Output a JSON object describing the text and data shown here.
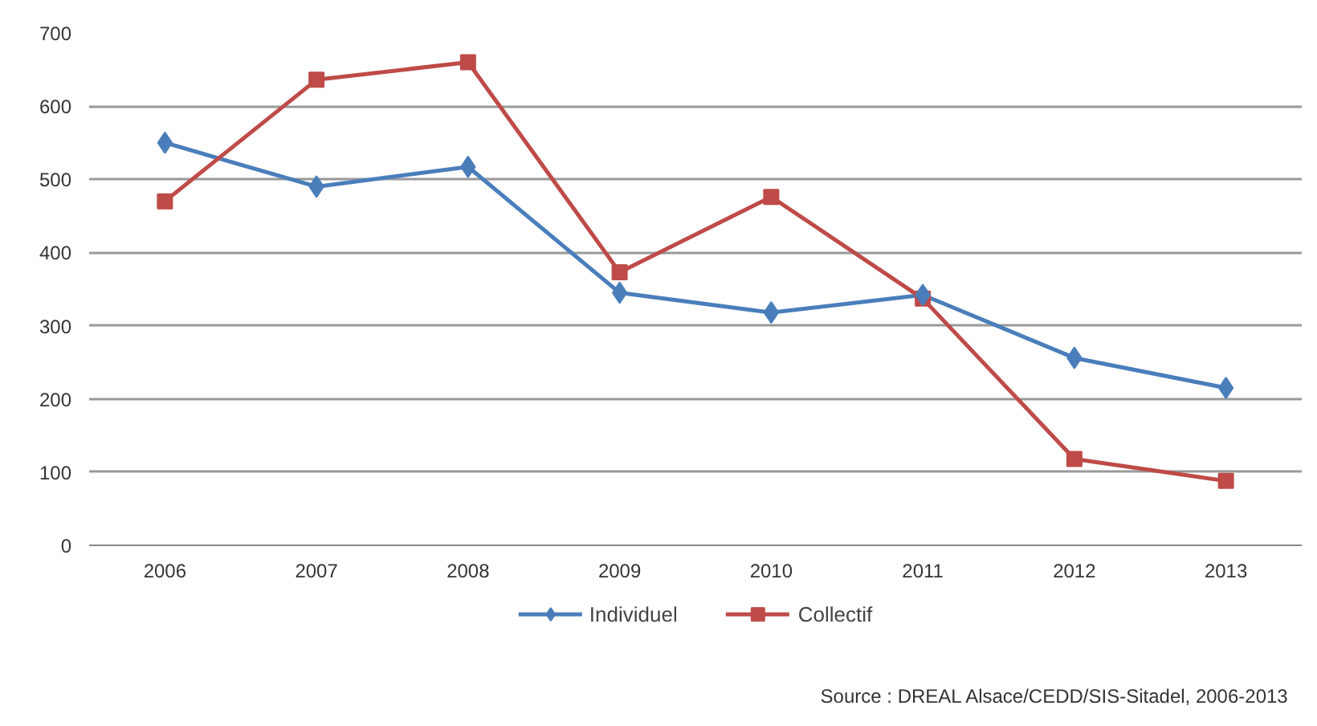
{
  "chart_data": {
    "type": "line",
    "categories": [
      "2006",
      "2007",
      "2008",
      "2009",
      "2010",
      "2011",
      "2012",
      "2013"
    ],
    "series": [
      {
        "name": "Individuel",
        "color": "#4a7ebb",
        "marker": "diamond",
        "values": [
          550,
          490,
          517,
          345,
          318,
          342,
          256,
          215
        ]
      },
      {
        "name": "Collectif",
        "color": "#be4b48",
        "marker": "square",
        "values": [
          470,
          636,
          660,
          373,
          476,
          337,
          118,
          88
        ]
      }
    ],
    "ylim": [
      0,
      700
    ],
    "yticks": [
      0,
      100,
      200,
      300,
      400,
      500,
      600,
      700
    ],
    "grid": "y",
    "legend": "bottom",
    "line_style": "solid",
    "annotations": [
      "Source : DREAL Alsace/CEDD/SIS-Sitadel, 2006-2013"
    ]
  }
}
